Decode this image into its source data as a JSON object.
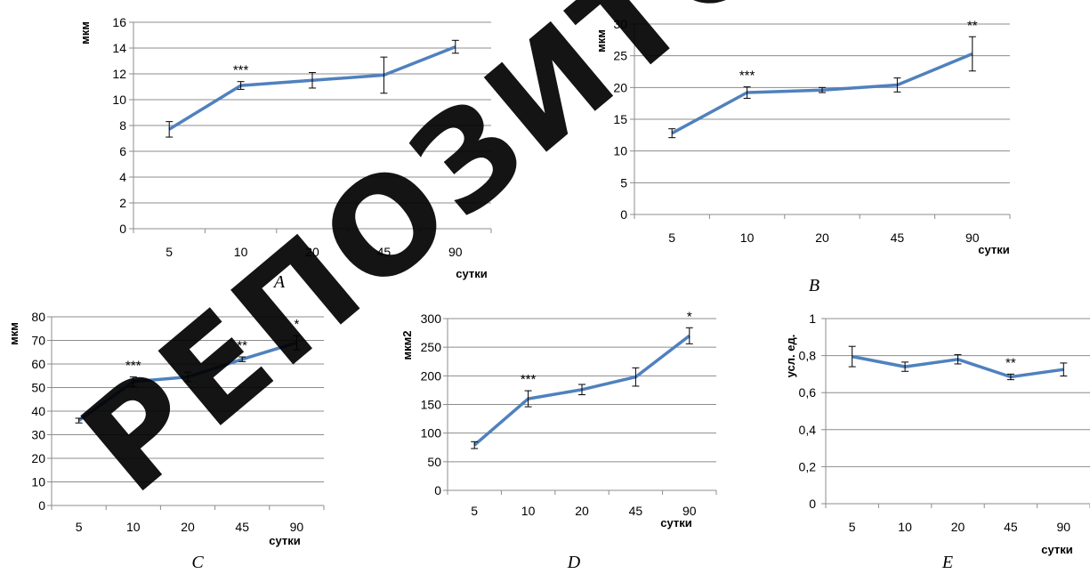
{
  "chart_data": [
    {
      "type": "line",
      "panel": "A",
      "ylabel": "мкм",
      "xlabel": "сутки",
      "categories": [
        "5",
        "10",
        "20",
        "45",
        "90"
      ],
      "values": [
        7.7,
        11.1,
        11.5,
        11.9,
        14.1
      ],
      "errors": [
        0.6,
        0.3,
        0.6,
        1.4,
        0.5
      ],
      "annotations": [
        "",
        "***",
        "",
        "",
        ""
      ],
      "ylim": [
        0,
        16
      ],
      "yticks": [
        0,
        2,
        4,
        6,
        8,
        10,
        12,
        14,
        16
      ],
      "grid": true,
      "color": "#4f81bd"
    },
    {
      "type": "line",
      "panel": "B",
      "ylabel": "мкм",
      "xlabel": "сутки",
      "categories": [
        "5",
        "10",
        "20",
        "45",
        "90"
      ],
      "values": [
        12.8,
        19.2,
        19.6,
        20.4,
        25.3
      ],
      "errors": [
        0.7,
        0.9,
        0.4,
        1.1,
        2.7
      ],
      "annotations": [
        "",
        "***",
        "",
        "",
        "**"
      ],
      "ylim": [
        0,
        30
      ],
      "yticks": [
        0,
        5,
        10,
        15,
        20,
        25,
        30
      ],
      "grid": true,
      "color": "#4f81bd"
    },
    {
      "type": "line",
      "panel": "C",
      "ylabel": "мкм",
      "xlabel": "сутки",
      "categories": [
        "5",
        "10",
        "20",
        "45",
        "90"
      ],
      "values": [
        36,
        52.5,
        54.5,
        62,
        69
      ],
      "errors": [
        1.0,
        2.0,
        2.0,
        1.0,
        3.0
      ],
      "annotations": [
        "",
        "***",
        "",
        "**",
        "*"
      ],
      "ylim": [
        0,
        80
      ],
      "yticks": [
        0,
        10,
        20,
        30,
        40,
        50,
        60,
        70,
        80
      ],
      "grid": true,
      "color": "#4f81bd"
    },
    {
      "type": "line",
      "panel": "D",
      "ylabel": "мкм2",
      "xlabel": "сутки",
      "categories": [
        "5",
        "10",
        "20",
        "45",
        "90"
      ],
      "values": [
        79,
        160,
        176,
        198,
        270
      ],
      "errors": [
        6,
        14,
        9,
        16,
        14
      ],
      "annotations": [
        "",
        "***",
        "",
        "",
        "*"
      ],
      "ylim": [
        0,
        300
      ],
      "yticks": [
        0,
        50,
        100,
        150,
        200,
        250,
        300
      ],
      "grid": true,
      "color": "#4f81bd"
    },
    {
      "type": "line",
      "panel": "E",
      "ylabel": "усл. ед.",
      "xlabel": "сутки",
      "categories": [
        "5",
        "10",
        "20",
        "45",
        "90"
      ],
      "values": [
        0.795,
        0.74,
        0.78,
        0.685,
        0.725
      ],
      "errors": [
        0.055,
        0.025,
        0.025,
        0.015,
        0.035
      ],
      "annotations": [
        "",
        "",
        "",
        "**",
        ""
      ],
      "ylim": [
        0,
        1
      ],
      "yticks": [
        "0",
        "0,2",
        "0,4",
        "0,6",
        "0,8",
        "1"
      ],
      "grid": true,
      "color": "#4f81bd"
    }
  ],
  "watermark": "РЕПОЗИТОРИЙ"
}
